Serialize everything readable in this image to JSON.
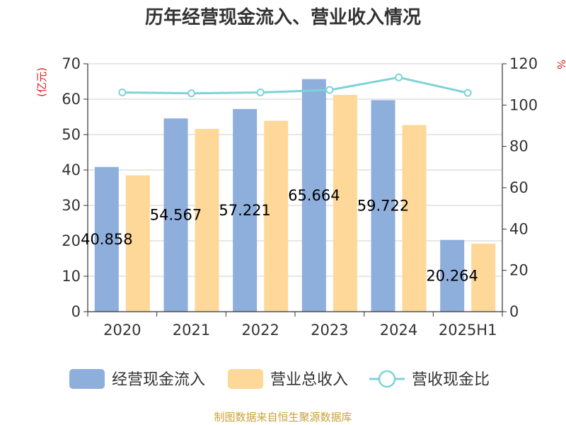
{
  "chart_data": {
    "type": "bar",
    "title": "历年经营现金流入、营业收入情况",
    "categories": [
      "2020",
      "2021",
      "2022",
      "2023",
      "2024",
      "2025H1"
    ],
    "series": [
      {
        "name": "经营现金流入",
        "type": "bar",
        "axis": "left",
        "color": "#8eaedc",
        "values": [
          40.858,
          54.567,
          57.221,
          65.664,
          59.722,
          20.264
        ],
        "labels": [
          "40.858",
          "54.567",
          "57.221",
          "65.664",
          "59.722",
          "20.264"
        ]
      },
      {
        "name": "营业总收入",
        "type": "bar",
        "axis": "left",
        "color": "#fed899",
        "values": [
          38.5,
          51.6,
          53.9,
          61.2,
          52.7,
          19.2
        ]
      },
      {
        "name": "营收现金比",
        "type": "line",
        "axis": "right",
        "color": "#7dd3d7",
        "values": [
          106.1,
          105.7,
          106.1,
          107.3,
          113.4,
          105.9
        ]
      }
    ],
    "y_left": {
      "unit": "(亿元)",
      "ylim": [
        0,
        70
      ],
      "ticks": [
        "0",
        "10",
        "20",
        "30",
        "40",
        "50",
        "60",
        "70"
      ]
    },
    "y_right": {
      "unit": "%",
      "ylim": [
        0,
        120
      ],
      "ticks": [
        "0",
        "20",
        "40",
        "60",
        "80",
        "100",
        "120"
      ]
    },
    "grid": true,
    "legend": "bottom"
  },
  "footer": "制图数据来自恒生聚源数据库"
}
